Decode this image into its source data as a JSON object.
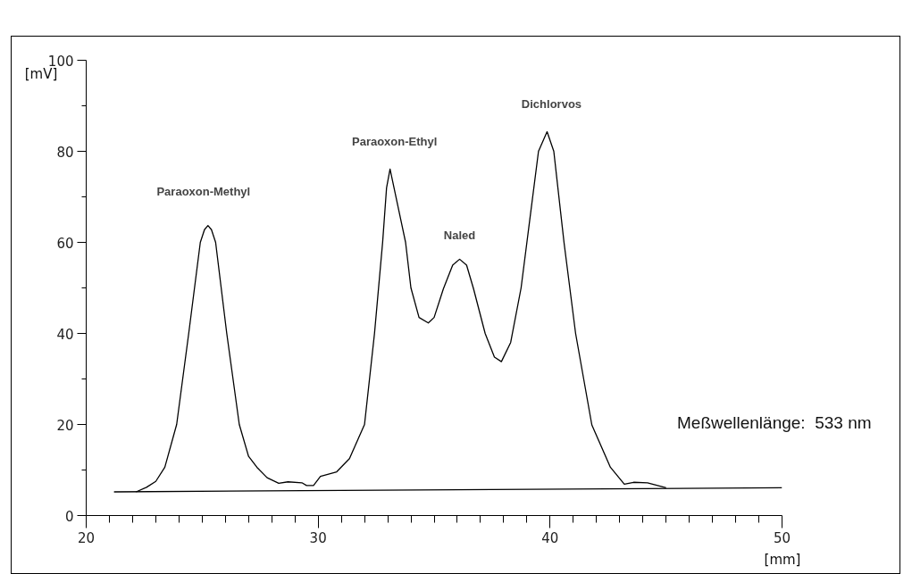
{
  "chart_data": {
    "type": "line",
    "xlabel": "[mm]",
    "ylabel": "[mV]",
    "xlim": [
      20,
      50
    ],
    "ylim": [
      0,
      100
    ],
    "xticks": [
      20,
      {
        "value": 21,
        "label": null
      },
      {
        "value": 22,
        "label": null
      },
      {
        "value": 23,
        "label": null
      },
      {
        "value": 24,
        "label": null
      },
      {
        "value": 25,
        "label": null
      },
      {
        "value": 26,
        "label": null
      },
      {
        "value": 27,
        "label": null
      },
      {
        "value": 28,
        "label": null
      },
      {
        "value": 29,
        "label": null
      },
      30,
      {
        "value": 31,
        "label": null
      },
      {
        "value": 32,
        "label": null
      },
      {
        "value": 33,
        "label": null
      },
      {
        "value": 34,
        "label": null
      },
      {
        "value": 35,
        "label": null
      },
      {
        "value": 36,
        "label": null
      },
      {
        "value": 37,
        "label": null
      },
      {
        "value": 38,
        "label": null
      },
      {
        "value": 39,
        "label": null
      },
      40,
      {
        "value": 41,
        "label": null
      },
      {
        "value": 42,
        "label": null
      },
      {
        "value": 43,
        "label": null
      },
      {
        "value": 44,
        "label": null
      },
      {
        "value": 45,
        "label": null
      },
      {
        "value": 46,
        "label": null
      },
      {
        "value": 47,
        "label": null
      },
      {
        "value": 48,
        "label": null
      },
      {
        "value": 49,
        "label": null
      },
      50
    ],
    "yticks": [
      0,
      {
        "value": 10,
        "label": null
      },
      20,
      {
        "value": 30,
        "label": null
      },
      40,
      {
        "value": 50,
        "label": null
      },
      60,
      {
        "value": 70,
        "label": null
      },
      80,
      {
        "value": 90,
        "label": null
      },
      100
    ],
    "grid": false,
    "marker": "none",
    "line_style": "solid",
    "series": [
      {
        "color": "#000000",
        "x": [
          22.15,
          22.6,
          23.0,
          23.39,
          23.9,
          24.42,
          24.92,
          25.1,
          25.25,
          25.4,
          25.58,
          26.06,
          26.6,
          27.0,
          27.36,
          27.8,
          28.3,
          28.7,
          29.3,
          29.5,
          29.8,
          30.1,
          30.8,
          31.35,
          32.0,
          32.43,
          32.78,
          32.95,
          33.1,
          33.77,
          34.0,
          34.35,
          34.75,
          35.0,
          35.4,
          35.8,
          36.1,
          36.4,
          36.7,
          37.2,
          37.6,
          37.9,
          38.3,
          38.75,
          39.0,
          39.5,
          39.87,
          40.16,
          40.6,
          41.1,
          41.8,
          42.6,
          43.2,
          43.6,
          44.2,
          45.0
        ],
        "values": [
          5.2,
          6.2,
          7.5,
          10.6,
          20,
          40,
          60,
          62.8,
          63.7,
          62.8,
          60,
          40,
          20,
          13,
          10.6,
          8.3,
          7.1,
          7.4,
          7.2,
          6.6,
          6.6,
          8.6,
          9.6,
          12.5,
          20,
          40,
          60,
          72,
          76.1,
          60,
          50,
          43.5,
          42.3,
          43.5,
          49.8,
          55,
          56.3,
          55,
          49.8,
          40,
          34.8,
          33.8,
          38,
          50,
          60,
          80,
          84.3,
          80,
          60,
          40,
          19.9,
          10.6,
          6.9,
          7.3,
          7.2,
          6.1
        ]
      },
      {
        "color": "#000000",
        "x": [
          21.2,
          50
        ],
        "values": [
          5.2,
          6.1
        ]
      }
    ],
    "annotations": [
      {
        "text": "Paraoxon-Methyl",
        "x": 25.25,
        "y": 63.7
      },
      {
        "text": "Paraoxon-Ethyl",
        "x": 33.1,
        "y": 76.1
      },
      {
        "text": "Naled",
        "x": 36.1,
        "y": 56.3
      },
      {
        "text": "Dichlorvos",
        "x": 39.87,
        "y": 84.3
      },
      "Meßwellenlänge:  533 nm"
    ]
  }
}
